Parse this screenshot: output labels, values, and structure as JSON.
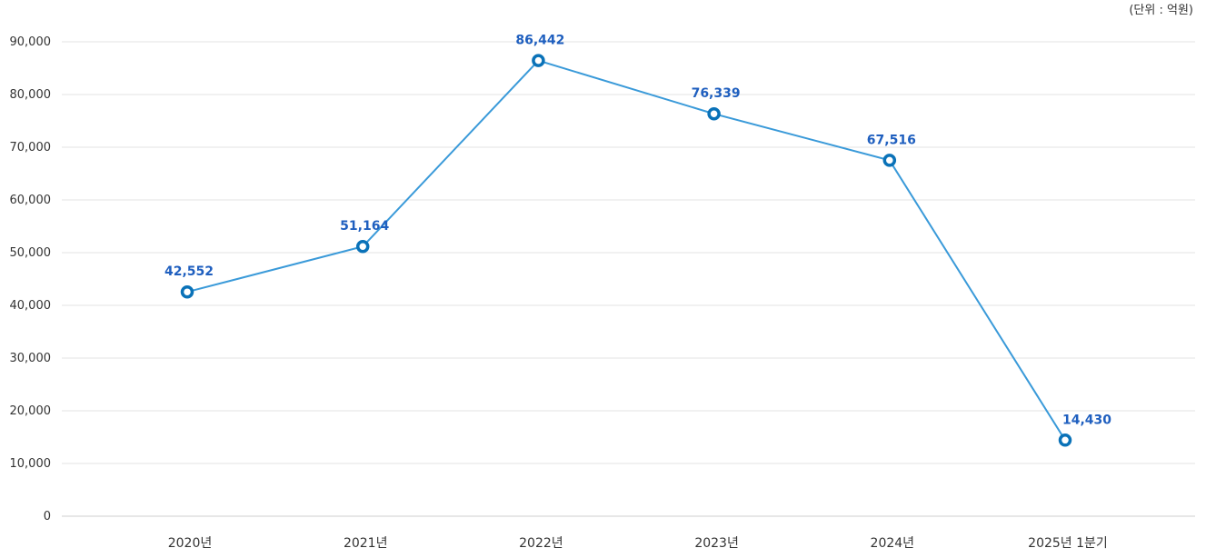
{
  "unit_label": "(단위 : 억원)",
  "colors": {
    "line": "#3a9ad9",
    "marker": "#0a72b8",
    "label": "#1f5fbf",
    "grid": "#e3e3e3"
  },
  "chart_data": {
    "type": "line",
    "title": "",
    "xlabel": "",
    "ylabel": "",
    "categories": [
      "2020년",
      "2021년",
      "2022년",
      "2023년",
      "2024년",
      "2025년 1분기"
    ],
    "values": [
      42552,
      51164,
      86442,
      76339,
      67516,
      14430
    ],
    "data_labels": [
      "42,552",
      "51,164",
      "86,442",
      "76,339",
      "67,516",
      "14,430"
    ],
    "ylim": [
      0,
      90000
    ],
    "yticks": [
      0,
      10000,
      20000,
      30000,
      40000,
      50000,
      60000,
      70000,
      80000,
      90000
    ],
    "ytick_labels": [
      "0",
      "10,000",
      "20,000",
      "30,000",
      "40,000",
      "50,000",
      "60,000",
      "70,000",
      "80,000",
      "90,000"
    ],
    "grid": true,
    "legend": "none"
  }
}
